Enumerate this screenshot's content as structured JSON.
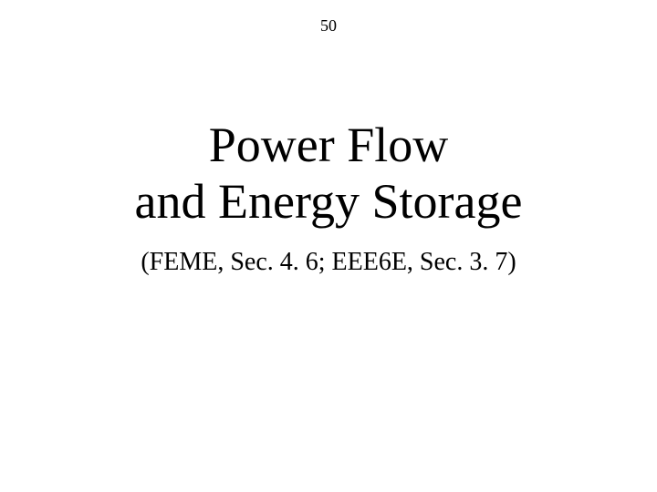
{
  "page_number": "50",
  "title": {
    "line1": "Power Flow",
    "line2": "and Energy Storage"
  },
  "subtitle": "(FEME, Sec. 4. 6; EEE6E, Sec. 3. 7)",
  "colors": {
    "text": "#000000",
    "background": "#ffffff"
  },
  "typography": {
    "font_family": "Times New Roman",
    "page_number_fontsize": 18,
    "title_fontsize": 54,
    "subtitle_fontsize": 28
  }
}
